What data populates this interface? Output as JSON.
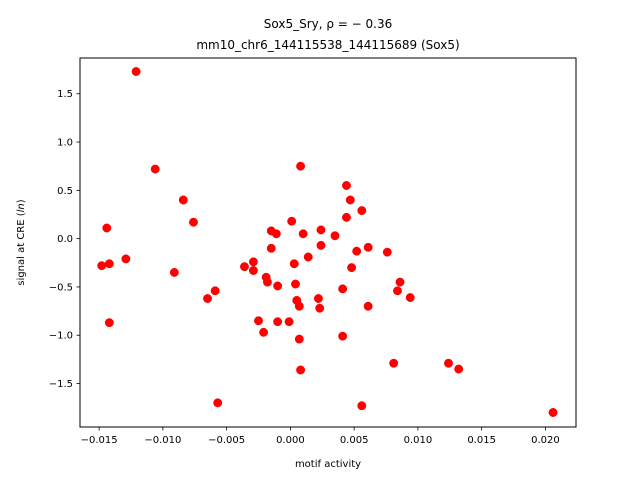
{
  "chart_data": {
    "type": "scatter",
    "title": "Sox5_Sry, ρ = − 0.36",
    "subtitle": "mm10_chr6_144115538_144115689 (Sox5)",
    "xlabel": "motif activity",
    "ylabel_prefix": "signal at CRE (",
    "ylabel_var": "ln",
    "ylabel_suffix": ")",
    "xlim": [
      -0.0165,
      0.0224
    ],
    "ylim": [
      -1.95,
      1.87
    ],
    "x_ticks": [
      -0.015,
      -0.01,
      -0.005,
      0.0,
      0.005,
      0.01,
      0.015,
      0.02
    ],
    "x_tick_labels": [
      "−0.015",
      "−0.010",
      "−0.005",
      "0.000",
      "0.005",
      "0.010",
      "0.015",
      "0.020"
    ],
    "y_ticks": [
      -1.5,
      -1.0,
      -0.5,
      0.0,
      0.5,
      1.0,
      1.5
    ],
    "y_tick_labels": [
      "−1.5",
      "−1.0",
      "−0.5",
      "0.0",
      "0.5",
      "1.0",
      "1.5"
    ],
    "grid": false,
    "marker_color": "#ff0000",
    "points": [
      {
        "x": -0.0121,
        "y": 1.73
      },
      {
        "x": -0.0106,
        "y": 0.72
      },
      {
        "x": -0.0084,
        "y": 0.4
      },
      {
        "x": -0.0076,
        "y": 0.17
      },
      {
        "x": -0.0144,
        "y": 0.11
      },
      {
        "x": -0.0148,
        "y": -0.28
      },
      {
        "x": -0.0142,
        "y": -0.26
      },
      {
        "x": -0.0129,
        "y": -0.21
      },
      {
        "x": -0.0091,
        "y": -0.35
      },
      {
        "x": -0.0142,
        "y": -0.87
      },
      {
        "x": -0.0065,
        "y": -0.62
      },
      {
        "x": -0.0059,
        "y": -0.54
      },
      {
        "x": -0.0057,
        "y": -1.7
      },
      {
        "x": -0.0036,
        "y": -0.29
      },
      {
        "x": -0.0029,
        "y": -0.24
      },
      {
        "x": -0.0029,
        "y": -0.33
      },
      {
        "x": -0.0025,
        "y": -0.85
      },
      {
        "x": -0.0021,
        "y": -0.97
      },
      {
        "x": -0.0019,
        "y": -0.4
      },
      {
        "x": -0.0018,
        "y": -0.45
      },
      {
        "x": -0.0015,
        "y": -0.1
      },
      {
        "x": -0.0015,
        "y": 0.08
      },
      {
        "x": -0.0011,
        "y": 0.05
      },
      {
        "x": -0.001,
        "y": -0.49
      },
      {
        "x": -0.001,
        "y": -0.86
      },
      {
        "x": -0.0001,
        "y": -0.86
      },
      {
        "x": 0.0001,
        "y": 0.18
      },
      {
        "x": 0.0003,
        "y": -0.26
      },
      {
        "x": 0.0004,
        "y": -0.47
      },
      {
        "x": 0.0005,
        "y": -0.64
      },
      {
        "x": 0.0007,
        "y": -0.7
      },
      {
        "x": 0.0007,
        "y": -1.04
      },
      {
        "x": 0.0008,
        "y": -1.36
      },
      {
        "x": 0.0008,
        "y": 0.75
      },
      {
        "x": 0.001,
        "y": 0.05
      },
      {
        "x": 0.0014,
        "y": -0.19
      },
      {
        "x": 0.0022,
        "y": -0.62
      },
      {
        "x": 0.0023,
        "y": -0.72
      },
      {
        "x": 0.0024,
        "y": -0.07
      },
      {
        "x": 0.0024,
        "y": 0.09
      },
      {
        "x": 0.0035,
        "y": 0.03
      },
      {
        "x": 0.0041,
        "y": -0.52
      },
      {
        "x": 0.0041,
        "y": -1.01
      },
      {
        "x": 0.0044,
        "y": 0.55
      },
      {
        "x": 0.0044,
        "y": 0.22
      },
      {
        "x": 0.0047,
        "y": 0.4
      },
      {
        "x": 0.0048,
        "y": -0.3
      },
      {
        "x": 0.0052,
        "y": -0.13
      },
      {
        "x": 0.0056,
        "y": 0.29
      },
      {
        "x": 0.0056,
        "y": -1.73
      },
      {
        "x": 0.0061,
        "y": -0.09
      },
      {
        "x": 0.0061,
        "y": -0.7
      },
      {
        "x": 0.0076,
        "y": -0.14
      },
      {
        "x": 0.0081,
        "y": -1.29
      },
      {
        "x": 0.0084,
        "y": -0.54
      },
      {
        "x": 0.0086,
        "y": -0.45
      },
      {
        "x": 0.0094,
        "y": -0.61
      },
      {
        "x": 0.0124,
        "y": -1.29
      },
      {
        "x": 0.0132,
        "y": -1.35
      },
      {
        "x": 0.0206,
        "y": -1.8
      }
    ]
  }
}
